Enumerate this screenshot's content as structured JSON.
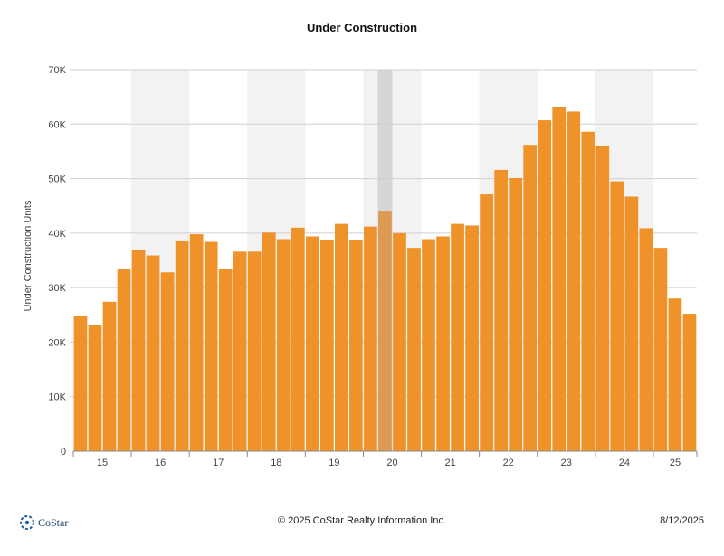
{
  "chart_data": {
    "type": "bar",
    "title": "Under Construction",
    "ylabel": "Under Construction Units",
    "xlabel": "",
    "ylim": [
      0,
      70000
    ],
    "y_ticks": [
      0,
      10000,
      20000,
      30000,
      40000,
      50000,
      60000,
      70000
    ],
    "y_tick_labels": [
      "0",
      "10K",
      "20K",
      "30K",
      "40K",
      "50K",
      "60K",
      "70K"
    ],
    "x_tick_labels": [
      "15",
      "16",
      "17",
      "18",
      "19",
      "20",
      "21",
      "22",
      "23",
      "24",
      "25"
    ],
    "bar_color": "#f0922a",
    "highlight_color": "#dd9a52",
    "shade_color": "#f2f2f2",
    "current_band_color": "#d6d6d6",
    "grid": true,
    "quarters": [
      "15 Q1",
      "15 Q2",
      "15 Q3",
      "15 Q4",
      "16 Q1",
      "16 Q2",
      "16 Q3",
      "16 Q4",
      "17 Q1",
      "17 Q2",
      "17 Q3",
      "17 Q4",
      "18 Q1",
      "18 Q2",
      "18 Q3",
      "18 Q4",
      "19 Q1",
      "19 Q2",
      "19 Q3",
      "19 Q4",
      "20 Q1",
      "20 Q2",
      "20 Q3",
      "20 Q4",
      "21 Q1",
      "21 Q2",
      "21 Q3",
      "21 Q4",
      "22 Q1",
      "22 Q2",
      "22 Q3",
      "22 Q4",
      "23 Q1",
      "23 Q2",
      "23 Q3",
      "23 Q4",
      "24 Q1",
      "24 Q2",
      "24 Q3",
      "24 Q4",
      "25 Q1",
      "25 Q2",
      "25 Q3"
    ],
    "values": [
      24800,
      23100,
      27400,
      33400,
      36900,
      35900,
      32800,
      38500,
      39800,
      38400,
      33500,
      36600,
      36600,
      40100,
      38900,
      41000,
      39400,
      38700,
      41700,
      38800,
      41200,
      44100,
      40000,
      37300,
      38900,
      39400,
      41700,
      41400,
      47100,
      51600,
      50100,
      56200,
      60700,
      63200,
      62300,
      58600,
      56000,
      49500,
      46700,
      40900,
      37300,
      28000,
      25200
    ],
    "highlight_index": 21,
    "shaded_years": [
      "16",
      "18",
      "20",
      "22",
      "24"
    ]
  },
  "footer": {
    "logo_text": "CoStar",
    "copyright": "© 2025 CoStar Realty Information Inc.",
    "date": "8/12/2025"
  }
}
